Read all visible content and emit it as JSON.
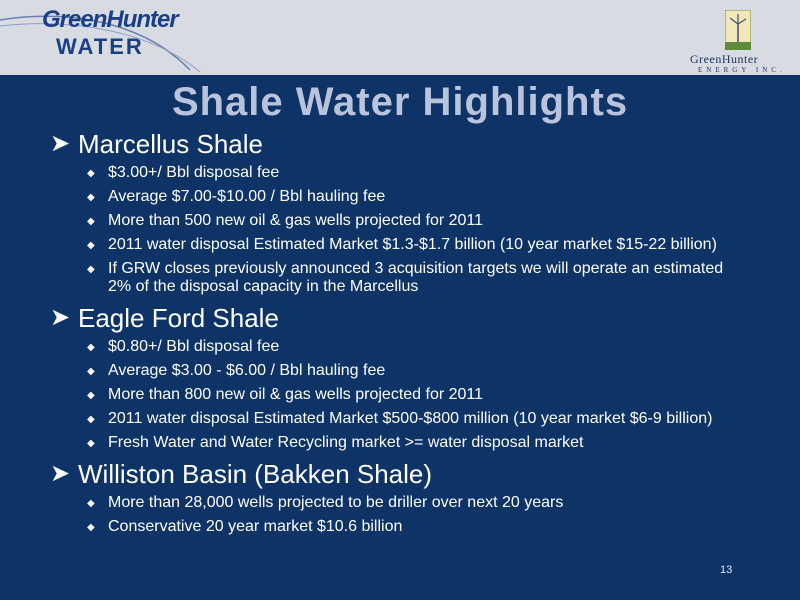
{
  "header": {
    "logo_left_line1": "GreenHunter",
    "logo_left_line2": "WATER",
    "logo_right_name": "GreenHunter",
    "logo_right_sub": "ENERGY INC."
  },
  "title": "Shale Water Highlights",
  "sections": [
    {
      "heading": "Marcellus Shale",
      "bullets": [
        "$3.00+/ Bbl disposal fee",
        "Average $7.00-$10.00 / Bbl hauling fee",
        "More than 500 new oil & gas wells projected for 2011",
        "2011 water disposal Estimated Market $1.3-$1.7 billion (10 year market $15-22 billion)",
        "If GRW closes previously announced 3 acquisition targets we will operate an estimated 2% of the disposal capacity in the Marcellus"
      ]
    },
    {
      "heading": "Eagle Ford Shale",
      "bullets": [
        "$0.80+/ Bbl disposal fee",
        "Average $3.00 - $6.00 / Bbl hauling fee",
        "More than 800 new oil & gas wells projected for 2011",
        "2011 water disposal Estimated Market $500-$800 million (10 year market $6-9 billion)",
        "Fresh Water and Water Recycling market >= water disposal market"
      ]
    },
    {
      "heading": "Williston Basin (Bakken Shale)",
      "bullets": [
        "More than 28,000 wells projected to be driller over next 20 years",
        "Conservative 20 year market $10.6 billion"
      ]
    }
  ],
  "page_number": "13",
  "colors": {
    "background": "#0e3366",
    "header": "#d8dbe1",
    "title": "#b9c3dc",
    "logo_blue": "#1a3f87"
  }
}
